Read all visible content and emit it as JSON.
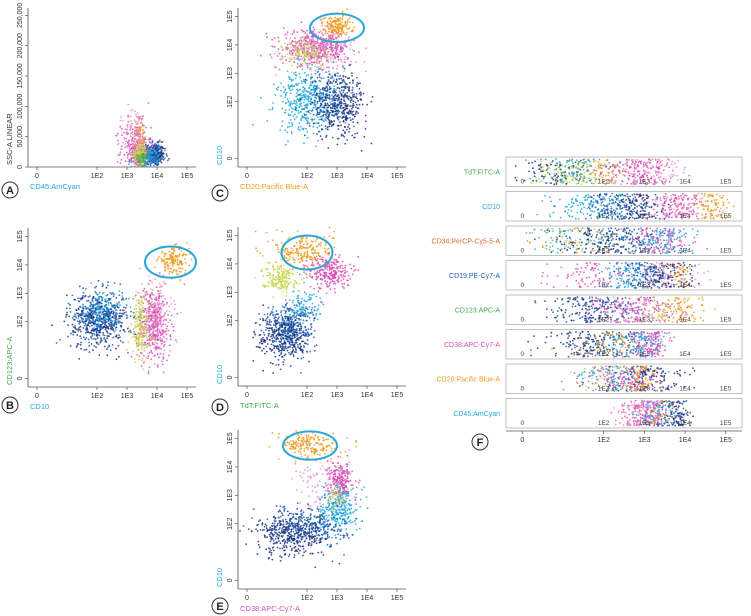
{
  "palette": {
    "cyan": "#1fa9e1",
    "blue": "#1b5fb4",
    "navy": "#23307a",
    "magenta": "#d94fb6",
    "pink": "#ea8fcf",
    "orange": "#f19a1c",
    "lime": "#c6d64a",
    "green": "#46a84a",
    "teal": "#3bb6b0",
    "ellipse": "#2aa7d8"
  },
  "chart_data": [
    {
      "id": "A",
      "type": "scatter",
      "xlabel": "CD45:AmCyan",
      "xlabel_color": "#1fa9e1",
      "ylabel": "SSC-A LINEAR",
      "ylabel_color": "#333333",
      "x_ticks": [
        "0",
        "1E2",
        "1E3",
        "1E4",
        "1E5"
      ],
      "y_ticks": [
        "0",
        "50,000",
        "100,000",
        "150,000",
        "200,000",
        "250,000"
      ],
      "xlim": [
        -0.3,
        5.3
      ],
      "ylim": [
        0,
        262144
      ],
      "y_scale": "linear",
      "populations": [
        {
          "color": "navy",
          "cx": 3.9,
          "cy": 20000,
          "sx": 0.18,
          "sy": 9000,
          "n": 260
        },
        {
          "color": "blue",
          "cx": 3.8,
          "cy": 22000,
          "sx": 0.2,
          "sy": 10000,
          "n": 180
        },
        {
          "color": "cyan",
          "cx": 3.6,
          "cy": 16000,
          "sx": 0.22,
          "sy": 8000,
          "n": 200
        },
        {
          "color": "magenta",
          "cx": 3.3,
          "cy": 30000,
          "sx": 0.25,
          "sy": 22000,
          "n": 260
        },
        {
          "color": "pink",
          "cx": 3.3,
          "cy": 45000,
          "sx": 0.22,
          "sy": 28000,
          "n": 140
        },
        {
          "color": "orange",
          "cx": 3.45,
          "cy": 40000,
          "sx": 0.12,
          "sy": 20000,
          "n": 60
        },
        {
          "color": "lime",
          "cx": 3.45,
          "cy": 22000,
          "sx": 0.12,
          "sy": 9000,
          "n": 90
        },
        {
          "color": "green",
          "cx": 3.5,
          "cy": 15000,
          "sx": 0.1,
          "sy": 6000,
          "n": 40
        }
      ]
    },
    {
      "id": "B",
      "type": "scatter",
      "xlabel": "CD10",
      "xlabel_color": "#1fa9e1",
      "ylabel": "CD123:APC-A",
      "ylabel_color": "#46a84a",
      "x_ticks": [
        "0",
        "1E2",
        "1E3",
        "1E4",
        "1E5"
      ],
      "y_ticks": [
        "0",
        "1E2",
        "1E3",
        "1E4",
        "1E5"
      ],
      "xlim": [
        -0.3,
        5.3
      ],
      "ylim": [
        -0.3,
        5.3
      ],
      "ellipse": {
        "cx": 4.45,
        "cy": 4.1,
        "rx": 0.85,
        "ry": 0.55
      },
      "populations": [
        {
          "color": "blue",
          "cx": 2.1,
          "cy": 2.2,
          "sx": 0.45,
          "sy": 0.45,
          "n": 420
        },
        {
          "color": "navy",
          "cx": 2.0,
          "cy": 2.0,
          "sx": 0.5,
          "sy": 0.5,
          "n": 260
        },
        {
          "color": "cyan",
          "cx": 2.2,
          "cy": 2.4,
          "sx": 0.35,
          "sy": 0.35,
          "n": 120
        },
        {
          "color": "magenta",
          "cx": 3.9,
          "cy": 1.9,
          "sx": 0.28,
          "sy": 0.65,
          "n": 380
        },
        {
          "color": "pink",
          "cx": 3.9,
          "cy": 2.2,
          "sx": 0.3,
          "sy": 0.7,
          "n": 160
        },
        {
          "color": "lime",
          "cx": 3.45,
          "cy": 1.8,
          "sx": 0.18,
          "sy": 0.6,
          "n": 170
        },
        {
          "color": "orange",
          "cx": 4.55,
          "cy": 4.15,
          "sx": 0.25,
          "sy": 0.22,
          "n": 150
        }
      ]
    },
    {
      "id": "C",
      "type": "scatter",
      "xlabel": "CD20:Pacific Blue-A",
      "xlabel_color": "#f19a1c",
      "ylabel": "CD10",
      "ylabel_color": "#1fa9e1",
      "x_ticks": [
        "0",
        "1E2",
        "1E3",
        "1E4",
        "1E5"
      ],
      "y_ticks": [
        "0",
        "1E2",
        "1E3",
        "1E4",
        "1E5"
      ],
      "xlim": [
        -0.3,
        5.3
      ],
      "ylim": [
        -0.3,
        5.3
      ],
      "ellipse": {
        "cx": 3.0,
        "cy": 4.6,
        "rx": 0.9,
        "ry": 0.5
      },
      "populations": [
        {
          "color": "magenta",
          "cx": 2.3,
          "cy": 3.9,
          "sx": 0.55,
          "sy": 0.3,
          "n": 430
        },
        {
          "color": "pink",
          "cx": 2.4,
          "cy": 3.8,
          "sx": 0.6,
          "sy": 0.35,
          "n": 180
        },
        {
          "color": "lime",
          "cx": 2.0,
          "cy": 3.7,
          "sx": 0.4,
          "sy": 0.25,
          "n": 120
        },
        {
          "color": "cyan",
          "cx": 2.0,
          "cy": 2.0,
          "sx": 0.5,
          "sy": 0.55,
          "n": 420
        },
        {
          "color": "navy",
          "cx": 3.1,
          "cy": 1.9,
          "sx": 0.45,
          "sy": 0.55,
          "n": 360
        },
        {
          "color": "blue",
          "cx": 2.8,
          "cy": 2.1,
          "sx": 0.4,
          "sy": 0.5,
          "n": 160
        },
        {
          "color": "orange",
          "cx": 3.0,
          "cy": 4.65,
          "sx": 0.25,
          "sy": 0.22,
          "n": 160
        }
      ]
    },
    {
      "id": "D",
      "type": "scatter",
      "xlabel": "TdT:FITC-A",
      "xlabel_color": "#46a84a",
      "ylabel": "CD10",
      "ylabel_color": "#1fa9e1",
      "x_ticks": [
        "0",
        "1E2",
        "1E3",
        "1E4",
        "1E5"
      ],
      "y_ticks": [
        "0",
        "1E2",
        "1E3",
        "1E4",
        "1E5"
      ],
      "xlim": [
        -0.3,
        5.3
      ],
      "ylim": [
        -0.3,
        5.3
      ],
      "ellipse": {
        "cx": 2.0,
        "cy": 4.4,
        "rx": 0.85,
        "ry": 0.6
      },
      "populations": [
        {
          "color": "orange",
          "cx": 1.9,
          "cy": 4.45,
          "sx": 0.5,
          "sy": 0.32,
          "n": 210
        },
        {
          "color": "magenta",
          "cx": 2.75,
          "cy": 3.7,
          "sx": 0.35,
          "sy": 0.3,
          "n": 260
        },
        {
          "color": "lime",
          "cx": 1.1,
          "cy": 3.5,
          "sx": 0.3,
          "sy": 0.22,
          "n": 180
        },
        {
          "color": "blue",
          "cx": 1.4,
          "cy": 1.7,
          "sx": 0.4,
          "sy": 0.45,
          "n": 420
        },
        {
          "color": "navy",
          "cx": 1.2,
          "cy": 1.4,
          "sx": 0.45,
          "sy": 0.45,
          "n": 240
        },
        {
          "color": "cyan",
          "cx": 1.9,
          "cy": 2.5,
          "sx": 0.35,
          "sy": 0.3,
          "n": 90
        }
      ]
    },
    {
      "id": "E",
      "type": "scatter",
      "xlabel": "CD38:APC-Cy7-A",
      "xlabel_color": "#d94fb6",
      "ylabel": "CD10",
      "ylabel_color": "#1fa9e1",
      "x_ticks": [
        "0",
        "1E2",
        "1E3",
        "1E4",
        "1E5"
      ],
      "y_ticks": [
        "0",
        "1E2",
        "1E3",
        "1E4",
        "1E5"
      ],
      "xlim": [
        -0.3,
        5.3
      ],
      "ylim": [
        -0.3,
        5.3
      ],
      "ellipse": {
        "cx": 2.1,
        "cy": 4.75,
        "rx": 0.9,
        "ry": 0.5
      },
      "populations": [
        {
          "color": "orange",
          "cx": 2.05,
          "cy": 4.75,
          "sx": 0.5,
          "sy": 0.25,
          "n": 200
        },
        {
          "color": "magenta",
          "cx": 3.1,
          "cy": 3.55,
          "sx": 0.2,
          "sy": 0.3,
          "n": 220
        },
        {
          "color": "pink",
          "cx": 2.6,
          "cy": 3.2,
          "sx": 0.5,
          "sy": 0.5,
          "n": 100
        },
        {
          "color": "cyan",
          "cx": 3.05,
          "cy": 2.5,
          "sx": 0.3,
          "sy": 0.4,
          "n": 260
        },
        {
          "color": "blue",
          "cx": 2.0,
          "cy": 1.9,
          "sx": 0.65,
          "sy": 0.32,
          "n": 360
        },
        {
          "color": "navy",
          "cx": 1.5,
          "cy": 1.6,
          "sx": 0.65,
          "sy": 0.4,
          "n": 300
        },
        {
          "color": "lime",
          "cx": 3.0,
          "cy": 2.9,
          "sx": 0.15,
          "sy": 0.2,
          "n": 40
        }
      ]
    },
    {
      "id": "F",
      "type": "scatter",
      "x_ticks": [
        "0",
        "1E2",
        "1E3",
        "1E4",
        "1E5"
      ],
      "xlim": [
        -0.4,
        5.4
      ],
      "rows": [
        {
          "label": "TdT:FITC-A",
          "label_color": "#46a84a",
          "segments": [
            {
              "color": "lime",
              "c": 1.0,
              "s": 0.45,
              "n": 80
            },
            {
              "color": "green",
              "c": 1.2,
              "s": 0.45,
              "n": 60
            },
            {
              "color": "navy",
              "c": 0.8,
              "s": 0.5,
              "n": 70
            },
            {
              "color": "cyan",
              "c": 1.3,
              "s": 0.45,
              "n": 60
            },
            {
              "color": "orange",
              "c": 2.0,
              "s": 0.35,
              "n": 70
            },
            {
              "color": "magenta",
              "c": 2.9,
              "s": 0.4,
              "n": 160
            },
            {
              "color": "pink",
              "c": 3.1,
              "s": 0.45,
              "n": 90
            }
          ]
        },
        {
          "label": "CD10",
          "label_color": "#1fa9e1",
          "segments": [
            {
              "color": "cyan",
              "c": 1.7,
              "s": 0.5,
              "n": 110
            },
            {
              "color": "blue",
              "c": 2.3,
              "s": 0.5,
              "n": 170
            },
            {
              "color": "navy",
              "c": 2.8,
              "s": 0.35,
              "n": 110
            },
            {
              "color": "magenta",
              "c": 3.9,
              "s": 0.3,
              "n": 120
            },
            {
              "color": "pink",
              "c": 3.7,
              "s": 0.4,
              "n": 70
            },
            {
              "color": "orange",
              "c": 4.65,
              "s": 0.22,
              "n": 90
            }
          ]
        },
        {
          "label": "CD34:PerCP-Cy5-5-A",
          "label_color": "#e0682a",
          "segments": [
            {
              "color": "teal",
              "c": 1.3,
              "s": 0.6,
              "n": 90
            },
            {
              "color": "navy",
              "c": 1.8,
              "s": 0.6,
              "n": 110
            },
            {
              "color": "blue",
              "c": 2.6,
              "s": 0.5,
              "n": 120
            },
            {
              "color": "magenta",
              "c": 3.4,
              "s": 0.35,
              "n": 130
            },
            {
              "color": "cyan",
              "c": 3.5,
              "s": 0.35,
              "n": 90
            },
            {
              "color": "orange",
              "c": 1.6,
              "s": 0.8,
              "n": 50
            }
          ]
        },
        {
          "label": "CD19:PE-Cy7-A",
          "label_color": "#1b5fb4",
          "segments": [
            {
              "color": "magenta",
              "c": 1.7,
              "s": 0.6,
              "n": 90
            },
            {
              "color": "cyan",
              "c": 2.6,
              "s": 0.25,
              "n": 90
            },
            {
              "color": "blue",
              "c": 3.0,
              "s": 0.3,
              "n": 120
            },
            {
              "color": "navy",
              "c": 3.6,
              "s": 0.35,
              "n": 110
            },
            {
              "color": "pink",
              "c": 3.4,
              "s": 0.5,
              "n": 80
            },
            {
              "color": "orange",
              "c": 3.9,
              "s": 0.15,
              "n": 40
            }
          ]
        },
        {
          "label": "CD123:APC-A",
          "label_color": "#46a84a",
          "segments": [
            {
              "color": "navy",
              "c": 1.6,
              "s": 0.55,
              "n": 110
            },
            {
              "color": "blue",
              "c": 2.0,
              "s": 0.55,
              "n": 100
            },
            {
              "color": "magenta",
              "c": 2.6,
              "s": 0.6,
              "n": 150
            },
            {
              "color": "pink",
              "c": 3.0,
              "s": 0.6,
              "n": 80
            },
            {
              "color": "orange",
              "c": 4.0,
              "s": 0.25,
              "n": 80
            },
            {
              "color": "lime",
              "c": 3.4,
              "s": 0.25,
              "n": 30
            }
          ]
        },
        {
          "label": "CD38:APC-Cy7-A",
          "label_color": "#d94fb6",
          "segments": [
            {
              "color": "navy",
              "c": 1.6,
              "s": 0.55,
              "n": 110
            },
            {
              "color": "blue",
              "c": 2.2,
              "s": 0.5,
              "n": 110
            },
            {
              "color": "orange",
              "c": 2.2,
              "s": 0.4,
              "n": 60
            },
            {
              "color": "magenta",
              "c": 3.1,
              "s": 0.25,
              "n": 150
            },
            {
              "color": "cyan",
              "c": 2.9,
              "s": 0.3,
              "n": 80
            }
          ]
        },
        {
          "label": "CD20:Pacific Blue-A",
          "label_color": "#f19a1c",
          "segments": [
            {
              "color": "navy",
              "c": 3.0,
              "s": 0.5,
              "n": 150
            },
            {
              "color": "magenta",
              "c": 2.5,
              "s": 0.45,
              "n": 140
            },
            {
              "color": "cyan",
              "c": 2.1,
              "s": 0.5,
              "n": 80
            },
            {
              "color": "orange",
              "c": 2.9,
              "s": 0.2,
              "n": 60
            },
            {
              "color": "lime",
              "c": 2.0,
              "s": 0.4,
              "n": 40
            }
          ]
        },
        {
          "label": "CD45:AmCyan",
          "label_color": "#1fa9e1",
          "segments": [
            {
              "color": "magenta",
              "c": 3.0,
              "s": 0.3,
              "n": 170
            },
            {
              "color": "pink",
              "c": 2.9,
              "s": 0.35,
              "n": 80
            },
            {
              "color": "navy",
              "c": 3.8,
              "s": 0.2,
              "n": 80
            },
            {
              "color": "cyan",
              "c": 3.4,
              "s": 0.25,
              "n": 60
            },
            {
              "color": "blue",
              "c": 3.6,
              "s": 0.25,
              "n": 50
            },
            {
              "color": "orange",
              "c": 3.3,
              "s": 0.2,
              "n": 30
            }
          ]
        }
      ]
    }
  ]
}
